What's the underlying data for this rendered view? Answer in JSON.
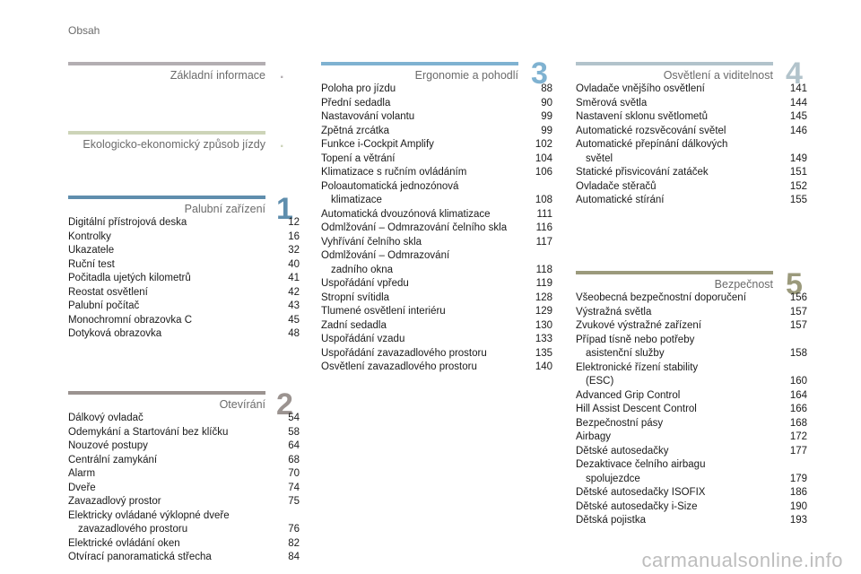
{
  "header": {
    "title": "Obsah"
  },
  "colors": {
    "gray_bar": "#b3aeb2",
    "green_bar": "#cdd4b8",
    "blue_bar": "#5f8ead",
    "taupe_bar": "#9b9390",
    "cyan_bar": "#7fb2d1",
    "slate_bar": "#b2c3cb",
    "olive_bar": "#9b9a7c"
  },
  "sections": {
    "zakladni": {
      "title": "Základní informace",
      "marker": "."
    },
    "ekologicko": {
      "title": "Ekologicko-ekonomický způsob jízdy",
      "marker": "."
    },
    "palubni": {
      "title": "Palubní zařízení",
      "number": "1",
      "items": [
        {
          "text": "Digitální přístrojová deska",
          "page": "12"
        },
        {
          "text": "Kontrolky",
          "page": "16"
        },
        {
          "text": "Ukazatele",
          "page": "32"
        },
        {
          "text": "Ruční test",
          "page": "40"
        },
        {
          "text": "Počitadla ujetých kilometrů",
          "page": "41"
        },
        {
          "text": "Reostat osvětlení",
          "page": "42"
        },
        {
          "text": "Palubní počítač",
          "page": "43"
        },
        {
          "text": "Monochromní obrazovka C",
          "page": "45"
        },
        {
          "text": "Dotyková obrazovka",
          "page": "48"
        }
      ]
    },
    "otevirani": {
      "title": "Otevírání",
      "number": "2",
      "items": [
        {
          "text": "Dálkový ovladač",
          "page": "54"
        },
        {
          "text": "Odemykání a Startování bez klíčku",
          "page": "58"
        },
        {
          "text": "Nouzové postupy",
          "page": "64"
        },
        {
          "text": "Centrální zamykání",
          "page": "68"
        },
        {
          "text": "Alarm",
          "page": "70"
        },
        {
          "text": "Dveře",
          "page": "74"
        },
        {
          "text": "Zavazadlový prostor",
          "page": "75"
        },
        {
          "text": "Elektricky ovládané výklopné dveře",
          "text2": "zavazadlového prostoru",
          "page": "76"
        },
        {
          "text": "Elektrické ovládání oken",
          "page": "82"
        },
        {
          "text": "Otvírací panoramatická střecha",
          "page": "84"
        }
      ]
    },
    "ergonomie": {
      "title": "Ergonomie a pohodlí",
      "number": "3",
      "items": [
        {
          "text": "Poloha pro jízdu",
          "page": "88"
        },
        {
          "text": "Přední sedadla",
          "page": "90"
        },
        {
          "text": "Nastavování volantu",
          "page": "99"
        },
        {
          "text": "Zpětná zrcátka",
          "page": "99"
        },
        {
          "text": "Funkce i-Cockpit Amplify",
          "page": "102"
        },
        {
          "text": "Topení a větrání",
          "page": "104"
        },
        {
          "text": "Klimatizace s ručním ovládáním",
          "page": "106"
        },
        {
          "text": "Poloautomatická jednozónová",
          "text2": "klimatizace",
          "page": "108"
        },
        {
          "text": "Automatická dvouzónová klimatizace",
          "page": "111"
        },
        {
          "text": "Odmlžování – Odmrazování čelního skla",
          "page": "116"
        },
        {
          "text": "Vyhřívání čelního skla",
          "page": "117"
        },
        {
          "text": "Odmlžování – Odmrazování",
          "text2": "zadního okna",
          "page": "118"
        },
        {
          "text": "Uspořádání vpředu",
          "page": "119"
        },
        {
          "text": "Stropní svítidla",
          "page": "128"
        },
        {
          "text": "Tlumené osvětlení interiéru",
          "page": "129"
        },
        {
          "text": "Zadní sedadla",
          "page": "130"
        },
        {
          "text": "Uspořádání vzadu",
          "page": "133"
        },
        {
          "text": "Uspořádání zavazadlového prostoru",
          "page": "135"
        },
        {
          "text": "Osvětlení zavazadlového prostoru",
          "page": "140"
        }
      ]
    },
    "osvetleni": {
      "title": "Osvětlení a viditelnost",
      "number": "4",
      "items": [
        {
          "text": "Ovladače vnějšího osvětlení",
          "page": "141"
        },
        {
          "text": "Směrová světla",
          "page": "144"
        },
        {
          "text": "Nastavení sklonu světlometů",
          "page": "145"
        },
        {
          "text": "Automatické rozsvěcování světel",
          "page": "146"
        },
        {
          "text": "Automatické přepínání dálkových",
          "text2": "světel",
          "page": "149"
        },
        {
          "text": "Statické přisvicování zatáček",
          "page": "151"
        },
        {
          "text": "Ovladače stěračů",
          "page": "152"
        },
        {
          "text": "Automatické stírání",
          "page": "155"
        }
      ]
    },
    "bezpecnost": {
      "title": "Bezpečnost",
      "number": "5",
      "items": [
        {
          "text": "Všeobecná bezpečnostní doporučení",
          "page": "156"
        },
        {
          "text": "Výstražná světla",
          "page": "157"
        },
        {
          "text": "Zvukové výstražné zařízení",
          "page": "157"
        },
        {
          "text": "Případ tísně nebo potřeby",
          "text2": "asistenční služby",
          "page": "158"
        },
        {
          "text": "Elektronické řízení stability",
          "text2": "(ESC)",
          "page": "160"
        },
        {
          "text": "Advanced Grip Control",
          "page": "164"
        },
        {
          "text": "Hill Assist Descent Control",
          "page": "166"
        },
        {
          "text": "Bezpečnostní pásy",
          "page": "168"
        },
        {
          "text": "Airbagy",
          "page": "172"
        },
        {
          "text": "Dětské autosedačky",
          "page": "177"
        },
        {
          "text": "Dezaktivace čelního airbagu",
          "text2": "spolujezdce",
          "page": "179"
        },
        {
          "text": "Dětské autosedačky ISOFIX",
          "page": "186"
        },
        {
          "text": "Dětské autosedačky i-Size",
          "page": "190"
        },
        {
          "text": "Dětská pojistka",
          "page": "193"
        }
      ]
    }
  },
  "watermark": "carmanualsonline.info"
}
